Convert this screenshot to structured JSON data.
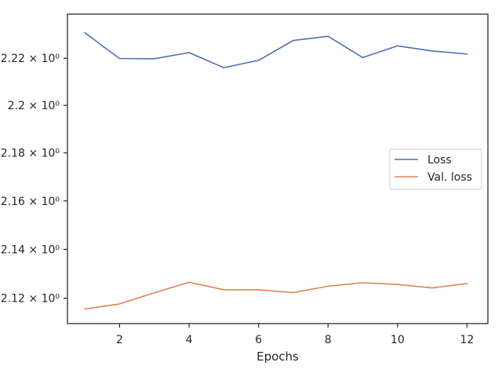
{
  "chart_data": {
    "type": "line",
    "xlabel": "Epochs",
    "ylabel": "",
    "x": [
      1,
      2,
      3,
      4,
      5,
      6,
      7,
      8,
      9,
      10,
      11,
      12
    ],
    "xlim": [
      0.5,
      12.6
    ],
    "ylim": [
      2.1097,
      2.2389
    ],
    "y_scale": "log",
    "grid": false,
    "legend_position": "center-right",
    "x_ticks": [
      {
        "value": 2,
        "label": "2"
      },
      {
        "value": 4,
        "label": "4"
      },
      {
        "value": 6,
        "label": "6"
      },
      {
        "value": 8,
        "label": "8"
      },
      {
        "value": 10,
        "label": "10"
      },
      {
        "value": 12,
        "label": "12"
      }
    ],
    "y_ticks": [
      {
        "value": 2.12,
        "label": "2.12 × 10⁰"
      },
      {
        "value": 2.14,
        "label": "2.14 × 10⁰"
      },
      {
        "value": 2.16,
        "label": "2.16 × 10⁰"
      },
      {
        "value": 2.18,
        "label": "2.18 × 10⁰"
      },
      {
        "value": 2.2,
        "label": "2.2 × 10⁰"
      },
      {
        "value": 2.22,
        "label": "2.22 × 10⁰"
      }
    ],
    "series": [
      {
        "name": "Loss",
        "color": "#4c72b0",
        "values": [
          2.2309,
          2.2199,
          2.2198,
          2.2224,
          2.216,
          2.2191,
          2.2276,
          2.2294,
          2.2203,
          2.2253,
          2.2231,
          2.2218
        ]
      },
      {
        "name": "Val. loss",
        "color": "#dd8452",
        "values": [
          2.1156,
          2.1177,
          2.1222,
          2.1265,
          2.1235,
          2.1234,
          2.1223,
          2.1249,
          2.1263,
          2.1256,
          2.1242,
          2.126
        ]
      }
    ]
  }
}
